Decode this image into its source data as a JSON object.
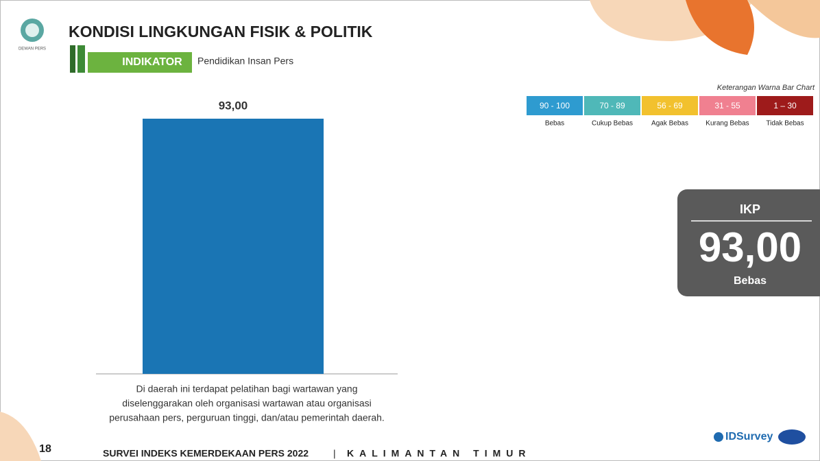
{
  "header": {
    "title": "KONDISI LINGKUNGAN FISIK & POLITIK",
    "indicator_label": "INDIKATOR",
    "indicator": "Pendidikan Insan Pers",
    "logo_text": "DEWAN PERS"
  },
  "chart_data": {
    "type": "bar",
    "categories": [
      null
    ],
    "values": [
      93
    ],
    "value_labels": [
      "93,00"
    ],
    "color": "#1a75b4",
    "ylim": [
      0,
      100
    ]
  },
  "caption": [
    "Di daerah ini terdapat pelatihan bagi wartawan yang",
    "diselenggarakan oleh organisasi wartawan atau organisasi",
    "perusahaan pers, perguruan tinggi, dan/atau pemerintah daerah."
  ],
  "legend": {
    "title": "Keterangan Warna Bar Chart",
    "items": [
      {
        "range": "90 - 100",
        "label": "Bebas",
        "color": "#2e9bd0"
      },
      {
        "range": "70 - 89",
        "label": "Cukup Bebas",
        "color": "#4fb8b8"
      },
      {
        "range": "56 - 69",
        "label": "Agak Bebas",
        "color": "#f2c12e"
      },
      {
        "range": "31 - 55",
        "label": "Kurang Bebas",
        "color": "#f08090"
      },
      {
        "range": "1 – 30",
        "label": "Tidak Bebas",
        "color": "#9e1b1b"
      }
    ]
  },
  "ikp": {
    "title": "IKP",
    "value": "93,00",
    "category": "Bebas"
  },
  "footer": {
    "page": "18",
    "survey": "SURVEI INDEKS KEMERDEKAAN PERS 2022",
    "separator": "|",
    "region": "KALIMANTAN TIMUR",
    "brand": "IDSurvey"
  }
}
